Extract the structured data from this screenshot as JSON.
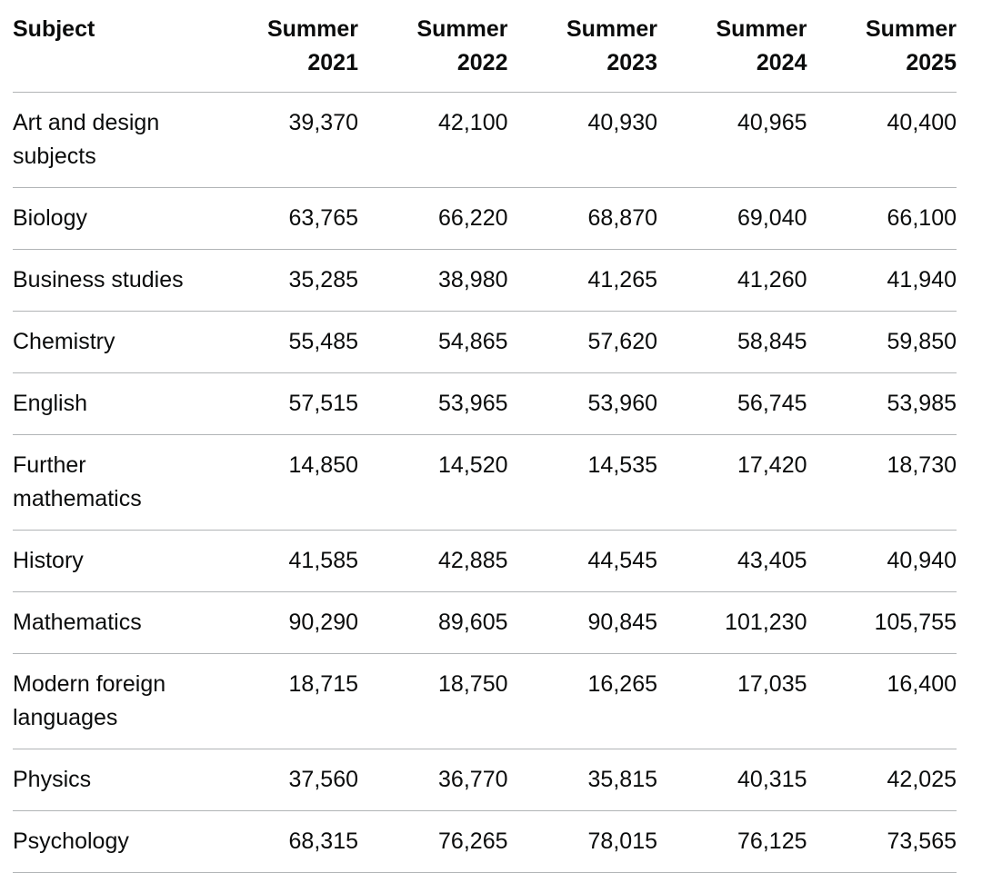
{
  "table": {
    "headers": [
      {
        "line1": "Subject",
        "line2": ""
      },
      {
        "line1": "Summer",
        "line2": "2021"
      },
      {
        "line1": "Summer",
        "line2": "2022"
      },
      {
        "line1": "Summer",
        "line2": "2023"
      },
      {
        "line1": "Summer",
        "line2": "2024"
      },
      {
        "line1": "Summer",
        "line2": "2025"
      }
    ],
    "rows": [
      {
        "subject": "Art and design subjects",
        "values": [
          "39,370",
          "42,100",
          "40,930",
          "40,965",
          "40,400"
        ]
      },
      {
        "subject": "Biology",
        "values": [
          "63,765",
          "66,220",
          "68,870",
          "69,040",
          "66,100"
        ]
      },
      {
        "subject": "Business studies",
        "values": [
          "35,285",
          "38,980",
          "41,265",
          "41,260",
          "41,940"
        ]
      },
      {
        "subject": "Chemistry",
        "values": [
          "55,485",
          "54,865",
          "57,620",
          "58,845",
          "59,850"
        ]
      },
      {
        "subject": "English",
        "values": [
          "57,515",
          "53,965",
          "53,960",
          "56,745",
          "53,985"
        ]
      },
      {
        "subject": "Further mathematics",
        "values": [
          "14,850",
          "14,520",
          "14,535",
          "17,420",
          "18,730"
        ]
      },
      {
        "subject": "History",
        "values": [
          "41,585",
          "42,885",
          "44,545",
          "43,405",
          "40,940"
        ]
      },
      {
        "subject": "Mathematics",
        "values": [
          "90,290",
          "89,605",
          "90,845",
          "101,230",
          "105,755"
        ]
      },
      {
        "subject": "Modern foreign languages",
        "values": [
          "18,715",
          "18,750",
          "16,265",
          "17,035",
          "16,400"
        ]
      },
      {
        "subject": "Physics",
        "values": [
          "37,560",
          "36,770",
          "35,815",
          "40,315",
          "42,025"
        ]
      },
      {
        "subject": "Psychology",
        "values": [
          "68,315",
          "76,265",
          "78,015",
          "76,125",
          "73,565"
        ]
      }
    ]
  }
}
